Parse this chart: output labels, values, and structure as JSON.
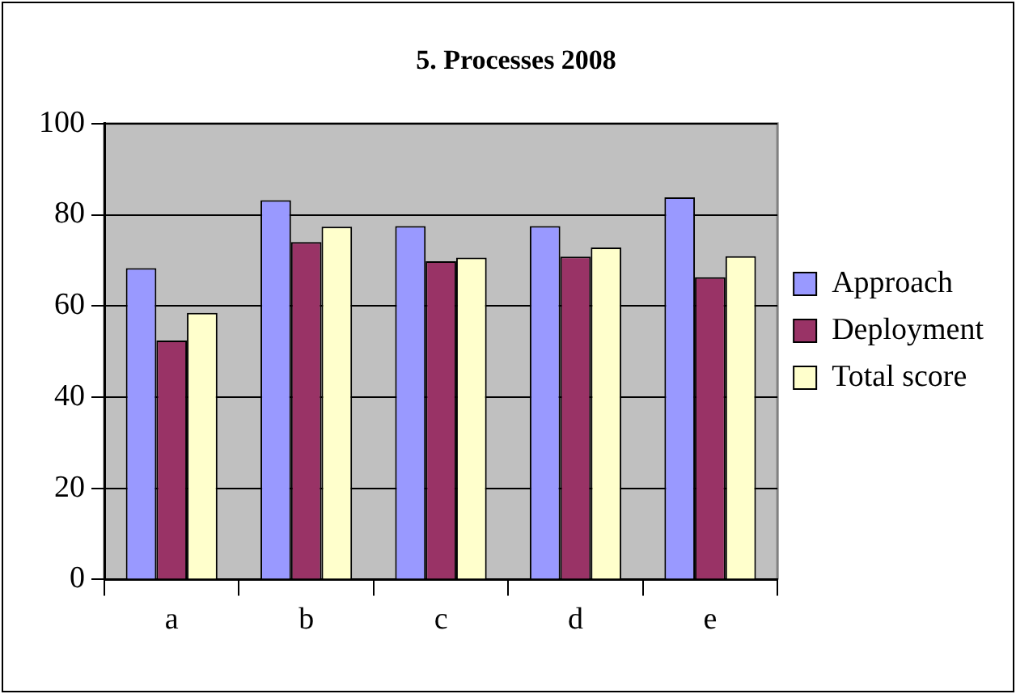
{
  "chart_data": {
    "type": "bar",
    "title": "5. Processes 2008",
    "categories": [
      "a",
      "b",
      "c",
      "d",
      "e"
    ],
    "series": [
      {
        "name": "Approach",
        "color": "#9999ff",
        "values": [
          68.3,
          83.2,
          77.5,
          77.5,
          83.8
        ]
      },
      {
        "name": "Deployment",
        "color": "#993366",
        "values": [
          52.4,
          74.0,
          69.8,
          70.8,
          66.3
        ]
      },
      {
        "name": "Total score",
        "color": "#ffffcc",
        "values": [
          58.5,
          77.4,
          70.6,
          72.8,
          70.9
        ]
      }
    ],
    "ylim": [
      0,
      100
    ],
    "yticks": [
      0,
      20,
      40,
      60,
      80,
      100
    ],
    "grid": "y",
    "legend": "right"
  }
}
